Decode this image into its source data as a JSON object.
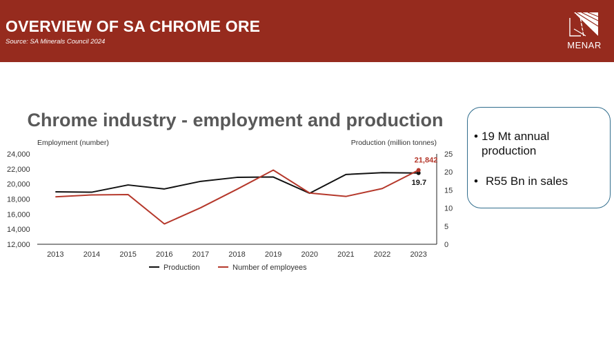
{
  "header": {
    "title": "OVERVIEW OF SA CHROME ORE",
    "source": "Source: SA Minerals Council  2024",
    "logo_text": "MENAR",
    "background": "#962b1e"
  },
  "info_box": {
    "bullets": [
      "19 Mt annual production",
      "R55 Bn in sales"
    ],
    "border_color": "#2f6c8c"
  },
  "chart_data": {
    "type": "line",
    "title": "Chrome industry - employment and production",
    "ylabel_left": "Employment (number)",
    "ylabel_right": "Production (million tonnes)",
    "categories": [
      "2013",
      "2014",
      "2015",
      "2016",
      "2017",
      "2018",
      "2019",
      "2020",
      "2021",
      "2022",
      "2023"
    ],
    "y_left": {
      "min": 12000,
      "max": 24000,
      "ticks": [
        "12,000",
        "14,000",
        "16,000",
        "18,000",
        "20,000",
        "22,000",
        "24,000"
      ]
    },
    "y_right": {
      "min": 0,
      "max": 25,
      "ticks": [
        "0",
        "5",
        "10",
        "15",
        "20",
        "25"
      ]
    },
    "series": [
      {
        "name": "Production",
        "axis": "right",
        "color": "#111111",
        "values": [
          14.5,
          14.4,
          16.4,
          15.3,
          17.4,
          18.5,
          18.6,
          14.1,
          19.3,
          19.8,
          19.7
        ],
        "end_label": "19.7"
      },
      {
        "name": "Number of employees",
        "axis": "left",
        "color": "#b5382b",
        "values": [
          18300,
          18550,
          18600,
          14700,
          16850,
          19300,
          21850,
          18800,
          18350,
          19400,
          21842
        ],
        "end_label": "21,842"
      }
    ],
    "legend": [
      "Production",
      "Number of employees"
    ],
    "legend_position": "bottom"
  }
}
